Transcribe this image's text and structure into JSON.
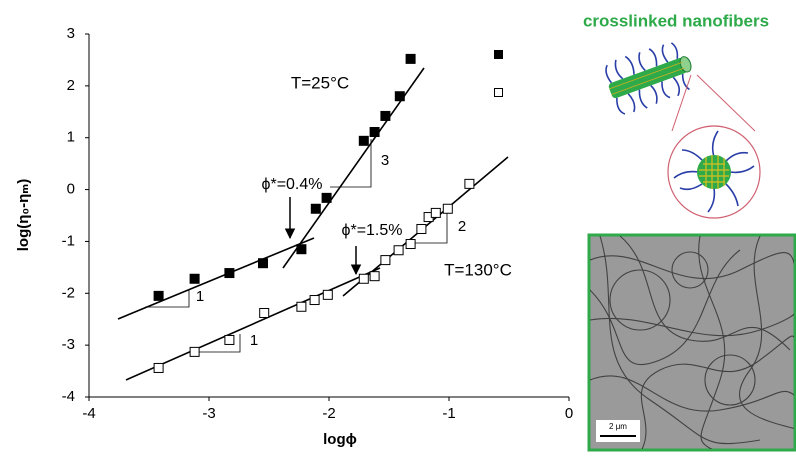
{
  "chart_data": {
    "type": "scatter",
    "title": "crosslinked nanofibers",
    "xlabel": "logϕ",
    "ylabel": "log(η₀-ηₘ)",
    "xlim": [
      -4,
      0
    ],
    "ylim": [
      -4,
      3
    ],
    "xticks": [
      -4,
      -3,
      -2,
      -1,
      0
    ],
    "yticks": [
      -4,
      -3,
      -2,
      -1,
      0,
      1,
      2,
      3
    ],
    "series": [
      {
        "name": "T=25°C",
        "color": "#000000",
        "marker": "filled",
        "x": [
          -3.42,
          -3.12,
          -2.83,
          -2.55,
          -2.23,
          -2.11,
          -2.02,
          -1.71,
          -1.62,
          -1.53,
          -1.41,
          -1.32
        ],
        "values": [
          -2.05,
          -1.72,
          -1.61,
          -1.42,
          -1.15,
          -0.37,
          -0.16,
          0.94,
          1.11,
          1.42,
          1.8,
          2.52
        ]
      },
      {
        "name": "T=130°C",
        "color": "#000000",
        "marker": "open",
        "x": [
          -3.42,
          -3.12,
          -2.83,
          -2.54,
          -2.23,
          -2.12,
          -2.01,
          -1.71,
          -1.62,
          -1.53,
          -1.42,
          -1.32,
          -1.23,
          -1.17,
          -1.11,
          -1.01,
          -0.83
        ],
        "values": [
          -3.44,
          -3.13,
          -2.9,
          -2.38,
          -2.26,
          -2.13,
          -2.03,
          -1.72,
          -1.67,
          -1.36,
          -1.17,
          -1.05,
          -0.76,
          -0.53,
          -0.45,
          -0.37,
          0.11
        ]
      }
    ],
    "annotations": [
      "ϕ*=0.4%",
      "ϕ*=1.5%",
      "1",
      "3",
      "1",
      "2"
    ],
    "scale_bar": "2 μm"
  }
}
